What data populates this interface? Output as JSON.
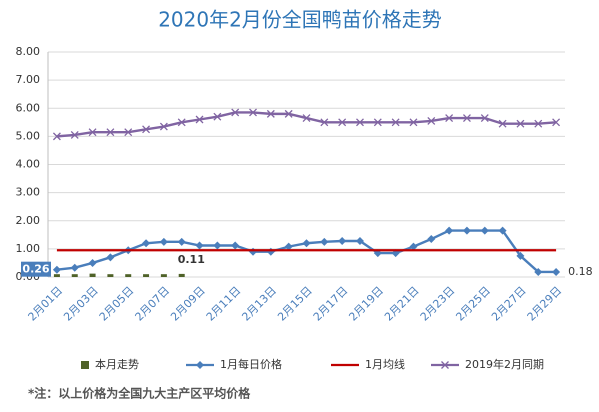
{
  "chart_data": {
    "type": "line",
    "title": "2020年2月份全国鸭苗价格走势",
    "note": "*注：以上价格为全国九大主产区平均价格",
    "categories": [
      "2月01日",
      null,
      "2月03日",
      null,
      "2月05日",
      null,
      "2月07日",
      null,
      "2月09日",
      null,
      "2月11日",
      null,
      "2月13日",
      null,
      "2月15日",
      null,
      "2月17日",
      null,
      "2月19日",
      null,
      "2月21日",
      null,
      "2月23日",
      null,
      "2月25日",
      null,
      "2月27日",
      null,
      "2月29日"
    ],
    "ylim": [
      0,
      8
    ],
    "yticks": [
      {
        "value": 0,
        "label": "0.00"
      },
      {
        "value": 1,
        "label": "1.00"
      },
      {
        "value": 2,
        "label": "2.00"
      },
      {
        "value": 3,
        "label": "3.00"
      },
      {
        "value": 4,
        "label": "4.00"
      },
      {
        "value": 5,
        "label": "5.00"
      },
      {
        "value": 6,
        "label": "6.00"
      },
      {
        "value": 7,
        "label": "7.00"
      },
      {
        "value": 8,
        "label": "8.00"
      }
    ],
    "grid": true,
    "legend": "bottom",
    "series": [
      {
        "name": "本月走势",
        "kind": "bar",
        "color": "#4f6228",
        "values": [
          0.1,
          0.1,
          0.12,
          0.1,
          0.1,
          0.1,
          0.1,
          0.11,
          null,
          null,
          null,
          null,
          null,
          null,
          null,
          null,
          null,
          null,
          null,
          null,
          null,
          null,
          null,
          null,
          null,
          null,
          null,
          null,
          null
        ],
        "label_indices": [
          7
        ]
      },
      {
        "name": "1月每日价格",
        "kind": "line",
        "marker": "diamond",
        "color": "#4a7ebb",
        "values": [
          0.26,
          0.33,
          0.5,
          0.7,
          0.95,
          1.2,
          1.25,
          1.25,
          1.12,
          1.12,
          1.12,
          0.9,
          0.9,
          1.08,
          1.2,
          1.25,
          1.28,
          1.28,
          0.85,
          0.85,
          1.08,
          1.35,
          1.65,
          1.65,
          1.65,
          1.65,
          0.75,
          0.18,
          0.18
        ],
        "label_indices": [
          0,
          28
        ]
      },
      {
        "name": "1月均线",
        "kind": "line",
        "marker": "none",
        "color": "#c00000",
        "values": [
          0.95,
          0.95,
          0.95,
          0.95,
          0.95,
          0.95,
          0.95,
          0.95,
          0.95,
          0.95,
          0.95,
          0.95,
          0.95,
          0.95,
          0.95,
          0.95,
          0.95,
          0.95,
          0.95,
          0.95,
          0.95,
          0.95,
          0.95,
          0.95,
          0.95,
          0.95,
          0.95,
          0.95,
          0.95
        ]
      },
      {
        "name": "2019年2月同期",
        "kind": "line",
        "marker": "x",
        "color": "#8064a2",
        "values": [
          5.0,
          5.05,
          5.15,
          5.15,
          5.15,
          5.25,
          5.35,
          5.5,
          5.6,
          5.7,
          5.85,
          5.85,
          5.8,
          5.8,
          5.65,
          5.5,
          5.5,
          5.5,
          5.5,
          5.5,
          5.5,
          5.55,
          5.65,
          5.65,
          5.65,
          5.45,
          5.45,
          5.45,
          5.5
        ]
      }
    ]
  }
}
